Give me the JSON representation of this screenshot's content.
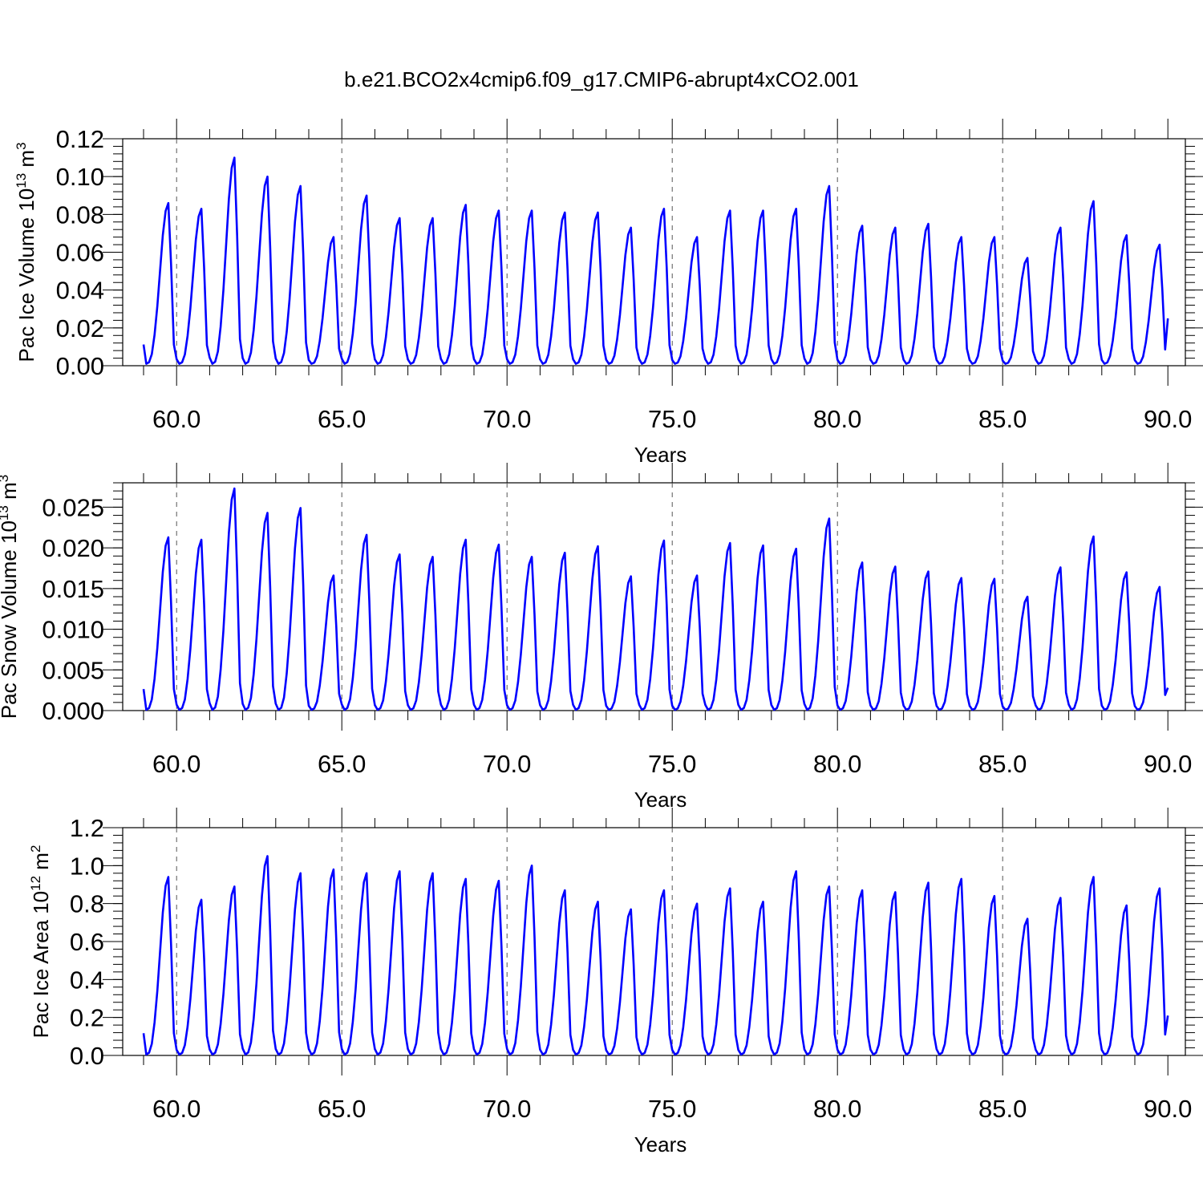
{
  "figure": {
    "title": "b.e21.BCO2x4cmip6.f09_g17.CMIP6-abrupt4xCO2.001",
    "line_color": "#0000ff",
    "grid_style": "dashed vertical lines at every 5 years"
  },
  "chart_data": [
    {
      "type": "line",
      "ylabel_main": "Pac Ice Volume 10",
      "ylabel_exp": "13",
      "ylabel_unit": " m",
      "ylabel_unit_exp": "3",
      "xlabel": "Years",
      "xlim": [
        59.0,
        90.0
      ],
      "ylim": [
        0.0,
        0.12
      ],
      "xticks": [
        60,
        65,
        70,
        75,
        80,
        85,
        90
      ],
      "xtick_labels": [
        "60.0",
        "65.0",
        "70.0",
        "75.0",
        "80.0",
        "85.0",
        "90.0"
      ],
      "yticks": [
        0.0,
        0.02,
        0.04,
        0.06,
        0.08,
        0.1,
        0.12
      ],
      "ytick_labels": [
        "0.00",
        "0.02",
        "0.04",
        "0.06",
        "0.08",
        "0.10",
        "0.12"
      ],
      "start_year": 59.0,
      "trough": 0.001,
      "annual_peaks": [
        0.086,
        0.083,
        0.11,
        0.1,
        0.095,
        0.068,
        0.09,
        0.078,
        0.078,
        0.085,
        0.082,
        0.082,
        0.081,
        0.081,
        0.073,
        0.083,
        0.068,
        0.082,
        0.082,
        0.083,
        0.095,
        0.074,
        0.073,
        0.075,
        0.068,
        0.068,
        0.057,
        0.073,
        0.087,
        0.069,
        0.064
      ],
      "end_value": 0.025
    },
    {
      "type": "line",
      "ylabel_main": "Pac Snow Volume 10",
      "ylabel_exp": "13",
      "ylabel_unit": " m",
      "ylabel_unit_exp": "3",
      "xlabel": "Years",
      "xlim": [
        59.0,
        90.0
      ],
      "ylim": [
        0.0,
        0.028
      ],
      "xticks": [
        60,
        65,
        70,
        75,
        80,
        85,
        90
      ],
      "xtick_labels": [
        "60.0",
        "65.0",
        "70.0",
        "75.0",
        "80.0",
        "85.0",
        "90.0"
      ],
      "yticks": [
        0.0,
        0.005,
        0.01,
        0.015,
        0.02,
        0.025
      ],
      "ytick_labels": [
        "0.000",
        "0.005",
        "0.010",
        "0.015",
        "0.020",
        "0.025"
      ],
      "start_year": 59.0,
      "trough": 0.0001,
      "annual_peaks": [
        0.0213,
        0.021,
        0.0273,
        0.0243,
        0.0249,
        0.0166,
        0.0216,
        0.0192,
        0.0189,
        0.021,
        0.0204,
        0.0189,
        0.0194,
        0.0202,
        0.0165,
        0.0209,
        0.0166,
        0.0206,
        0.0203,
        0.0199,
        0.0236,
        0.0182,
        0.0177,
        0.0171,
        0.0163,
        0.0162,
        0.014,
        0.0176,
        0.0214,
        0.017,
        0.0152
      ],
      "end_value": 0.0028
    },
    {
      "type": "line",
      "ylabel_main": "Pac Ice Area 10",
      "ylabel_exp": "12",
      "ylabel_unit": " m",
      "ylabel_unit_exp": "2",
      "xlabel": "Years",
      "xlim": [
        59.0,
        90.0
      ],
      "ylim": [
        0.0,
        1.2
      ],
      "xticks": [
        60,
        65,
        70,
        75,
        80,
        85,
        90
      ],
      "xtick_labels": [
        "60.0",
        "65.0",
        "70.0",
        "75.0",
        "80.0",
        "85.0",
        "90.0"
      ],
      "yticks": [
        0.0,
        0.2,
        0.4,
        0.6,
        0.8,
        1.0,
        1.2
      ],
      "ytick_labels": [
        "0.0",
        "0.2",
        "0.4",
        "0.6",
        "0.8",
        "1.0",
        "1.2"
      ],
      "start_year": 59.0,
      "trough": 0.005,
      "annual_peaks": [
        0.94,
        0.82,
        0.89,
        1.05,
        0.96,
        0.98,
        0.96,
        0.97,
        0.96,
        0.93,
        0.92,
        1.0,
        0.87,
        0.81,
        0.77,
        0.87,
        0.8,
        0.88,
        0.81,
        0.97,
        0.89,
        0.87,
        0.86,
        0.91,
        0.93,
        0.84,
        0.72,
        0.83,
        0.94,
        0.79,
        0.88
      ],
      "end_value": 0.21
    }
  ]
}
